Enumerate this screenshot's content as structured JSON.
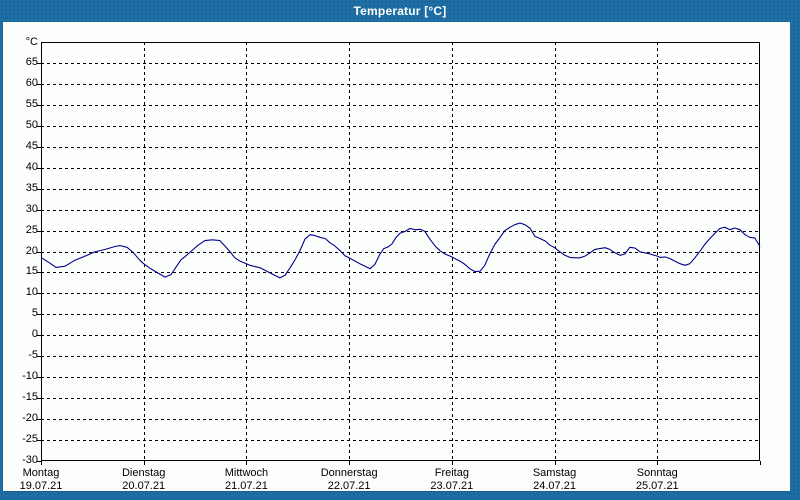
{
  "window": {
    "title": "Temperatur [°C]"
  },
  "colors": {
    "frame": "#1e6fa5",
    "panel_bg": "#fcfefb",
    "plot_border": "#000000",
    "grid": "#000000",
    "series_line": "#00008c",
    "title_text": "#ffffff",
    "axis_text": "#000000"
  },
  "chart_data": {
    "type": "line",
    "title": "Temperatur [°C]",
    "y_unit_label": "°C",
    "ylim": [
      -30,
      70
    ],
    "ytick_step": 5,
    "ytick_labels": [
      65,
      60,
      55,
      50,
      45,
      40,
      35,
      30,
      25,
      20,
      15,
      10,
      5,
      0,
      -5,
      -10,
      -15,
      -20,
      -25,
      -30
    ],
    "grid": "dashed",
    "legend_position": "none",
    "x_range_hours": [
      0,
      168
    ],
    "x_axis_days": [
      {
        "name": "Montag",
        "date": "19.07.21"
      },
      {
        "name": "Dienstag",
        "date": "20.07.21"
      },
      {
        "name": "Mittwoch",
        "date": "21.07.21"
      },
      {
        "name": "Donnerstag",
        "date": "22.07.21"
      },
      {
        "name": "Freitag",
        "date": "23.07.21"
      },
      {
        "name": "Samstag",
        "date": "24.07.21"
      },
      {
        "name": "Sonntag",
        "date": "25.07.21"
      }
    ],
    "series": [
      {
        "name": "Temperatur",
        "color": "#00008c",
        "points_hours_temp": [
          [
            0,
            18.6
          ],
          [
            2.1,
            17.2
          ],
          [
            3.5,
            16.2
          ],
          [
            5.6,
            16.5
          ],
          [
            7.9,
            17.9
          ],
          [
            10.3,
            18.9
          ],
          [
            12.6,
            19.9
          ],
          [
            15,
            20.5
          ],
          [
            17.3,
            21.2
          ],
          [
            18.5,
            21.4
          ],
          [
            20.1,
            21.0
          ],
          [
            21.5,
            19.8
          ],
          [
            23.1,
            17.9
          ],
          [
            24,
            17.1
          ],
          [
            25.5,
            16.0
          ],
          [
            27.1,
            15.0
          ],
          [
            29,
            13.9
          ],
          [
            30.4,
            14.5
          ],
          [
            31.5,
            16.2
          ],
          [
            32.7,
            18.0
          ],
          [
            33.9,
            19.0
          ],
          [
            35,
            20.0
          ],
          [
            36.7,
            21.5
          ],
          [
            38.3,
            22.6
          ],
          [
            40,
            22.8
          ],
          [
            41.8,
            22.6
          ],
          [
            43,
            21.3
          ],
          [
            44.2,
            19.9
          ],
          [
            45.3,
            18.5
          ],
          [
            46.5,
            17.7
          ],
          [
            48,
            17.1
          ],
          [
            48.8,
            16.7
          ],
          [
            51.2,
            16.1
          ],
          [
            53.5,
            14.9
          ],
          [
            55.8,
            13.7
          ],
          [
            57,
            14.3
          ],
          [
            58.2,
            16.1
          ],
          [
            59.4,
            18.1
          ],
          [
            60.5,
            20.2
          ],
          [
            61.7,
            23.0
          ],
          [
            62.9,
            24.0
          ],
          [
            64,
            23.8
          ],
          [
            65.2,
            23.4
          ],
          [
            66.4,
            23.1
          ],
          [
            67.5,
            22.1
          ],
          [
            68.7,
            21.3
          ],
          [
            69.9,
            20.2
          ],
          [
            71,
            19.0
          ],
          [
            72,
            18.5
          ],
          [
            73.4,
            17.7
          ],
          [
            74.5,
            17.1
          ],
          [
            75.7,
            16.5
          ],
          [
            76.9,
            15.9
          ],
          [
            78,
            16.9
          ],
          [
            79.2,
            19.4
          ],
          [
            80.1,
            20.7
          ],
          [
            81.1,
            21.1
          ],
          [
            82,
            21.8
          ],
          [
            82.9,
            23.3
          ],
          [
            83.9,
            24.4
          ],
          [
            85.1,
            24.8
          ],
          [
            86.2,
            25.5
          ],
          [
            87.4,
            25.2
          ],
          [
            88.6,
            25.3
          ],
          [
            89.7,
            24.8
          ],
          [
            90.9,
            22.9
          ],
          [
            92.1,
            21.3
          ],
          [
            93.2,
            20.2
          ],
          [
            94.4,
            19.4
          ],
          [
            95.6,
            18.9
          ],
          [
            96.7,
            18.3
          ],
          [
            97.9,
            17.7
          ],
          [
            99.1,
            16.9
          ],
          [
            100.2,
            15.9
          ],
          [
            101.4,
            15.2
          ],
          [
            102.6,
            15.3
          ],
          [
            103.7,
            16.7
          ],
          [
            104.9,
            19.5
          ],
          [
            106.1,
            21.8
          ],
          [
            107.2,
            23.3
          ],
          [
            108.4,
            25.0
          ],
          [
            109.6,
            25.8
          ],
          [
            110.7,
            26.4
          ],
          [
            111.9,
            26.8
          ],
          [
            113.1,
            26.4
          ],
          [
            114.3,
            25.5
          ],
          [
            115.4,
            23.6
          ],
          [
            116.6,
            23.1
          ],
          [
            117.8,
            22.5
          ],
          [
            118.9,
            21.5
          ],
          [
            120,
            20.9
          ],
          [
            121.3,
            19.9
          ],
          [
            122.4,
            19.1
          ],
          [
            123.6,
            18.6
          ],
          [
            124.8,
            18.5
          ],
          [
            125.9,
            18.5
          ],
          [
            127.1,
            18.9
          ],
          [
            128.3,
            19.7
          ],
          [
            129.4,
            20.5
          ],
          [
            130.6,
            20.7
          ],
          [
            131.8,
            20.9
          ],
          [
            132.9,
            20.5
          ],
          [
            134.1,
            19.7
          ],
          [
            135.3,
            19.1
          ],
          [
            136.4,
            19.4
          ],
          [
            137.6,
            21.0
          ],
          [
            138.8,
            20.8
          ],
          [
            140,
            19.9
          ],
          [
            141.1,
            19.7
          ],
          [
            142.3,
            19.4
          ],
          [
            144,
            18.9
          ],
          [
            144.6,
            18.6
          ],
          [
            145.8,
            18.7
          ],
          [
            147,
            18.3
          ],
          [
            148.1,
            17.7
          ],
          [
            149.3,
            17.1
          ],
          [
            150.5,
            16.7
          ],
          [
            151.6,
            17.1
          ],
          [
            152.8,
            18.5
          ],
          [
            154,
            20.1
          ],
          [
            155.1,
            21.7
          ],
          [
            156.3,
            23.1
          ],
          [
            157.5,
            24.4
          ],
          [
            158.6,
            25.5
          ],
          [
            159.8,
            25.8
          ],
          [
            161,
            25.2
          ],
          [
            162.1,
            25.6
          ],
          [
            163.3,
            25.2
          ],
          [
            164.5,
            24.0
          ],
          [
            165.6,
            23.4
          ],
          [
            166.8,
            23.2
          ],
          [
            168,
            21.2
          ]
        ]
      }
    ]
  }
}
